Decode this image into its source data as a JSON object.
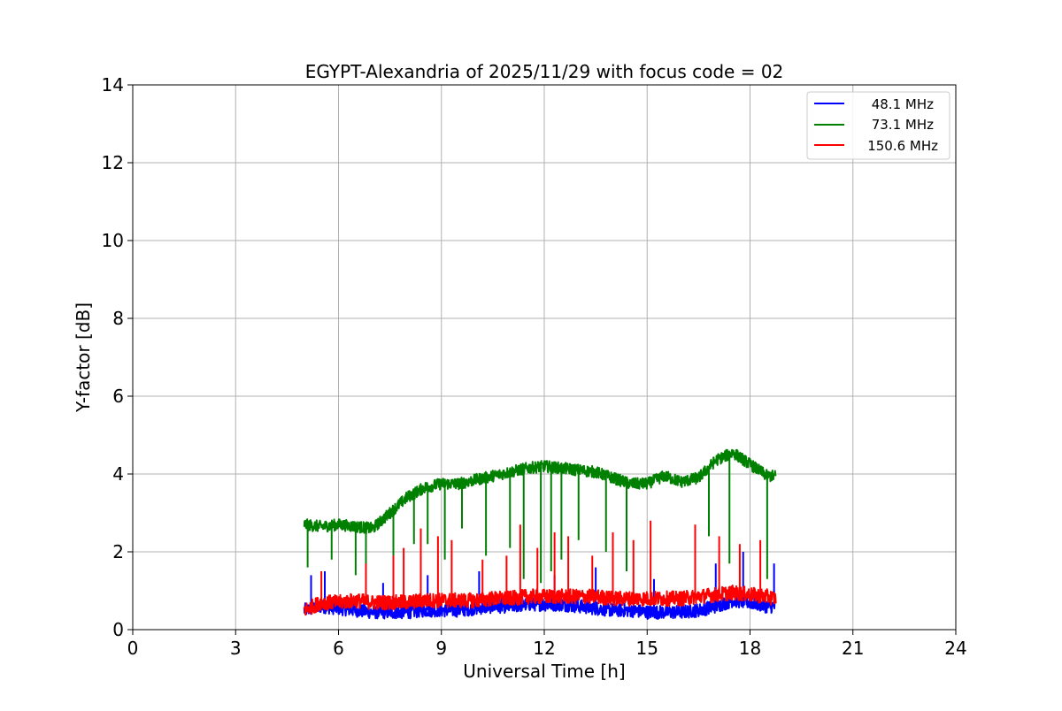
{
  "chart_data": {
    "type": "line",
    "title": "EGYPT-Alexandria of 2025/11/29 with focus code = 02",
    "xlabel": "Universal Time [h]",
    "ylabel": "Y-factor [dB]",
    "xlim": [
      0,
      24
    ],
    "ylim": [
      0,
      14
    ],
    "xticks": [
      "0",
      "3",
      "6",
      "9",
      "12",
      "15",
      "18",
      "21",
      "24"
    ],
    "yticks": [
      "0",
      "2",
      "4",
      "6",
      "8",
      "10",
      "12",
      "14"
    ],
    "grid": true,
    "legend_position": "top-right",
    "series": [
      {
        "name": "  48.1 MHz",
        "color": "#0000ff",
        "x": [
          5.0,
          5.5,
          6.0,
          6.5,
          7.0,
          7.5,
          8.0,
          8.5,
          9.0,
          9.5,
          10.0,
          10.5,
          11.0,
          11.5,
          12.0,
          12.5,
          13.0,
          13.5,
          14.0,
          14.5,
          15.0,
          15.5,
          16.0,
          16.5,
          17.0,
          17.5,
          18.0,
          18.5,
          18.75
        ],
        "values": [
          0.5,
          0.6,
          0.55,
          0.5,
          0.45,
          0.45,
          0.45,
          0.5,
          0.5,
          0.5,
          0.55,
          0.6,
          0.6,
          0.65,
          0.65,
          0.65,
          0.6,
          0.55,
          0.5,
          0.5,
          0.45,
          0.45,
          0.45,
          0.5,
          0.6,
          0.75,
          0.7,
          0.6,
          0.6
        ],
        "peaks": [
          [
            5.2,
            1.4
          ],
          [
            5.6,
            1.5
          ],
          [
            7.3,
            1.2
          ],
          [
            8.6,
            1.4
          ],
          [
            10.1,
            1.5
          ],
          [
            12.3,
            1.4
          ],
          [
            13.5,
            1.6
          ],
          [
            15.2,
            1.3
          ],
          [
            17.0,
            1.7
          ],
          [
            17.8,
            2.0
          ],
          [
            18.7,
            1.7
          ]
        ]
      },
      {
        "name": "  73.1 MHz",
        "color": "#008000",
        "x": [
          5.0,
          5.5,
          6.0,
          6.5,
          7.0,
          7.5,
          8.0,
          8.5,
          9.0,
          9.5,
          10.0,
          10.5,
          11.0,
          11.5,
          12.0,
          12.5,
          13.0,
          13.5,
          14.0,
          14.5,
          15.0,
          15.5,
          16.0,
          16.5,
          17.0,
          17.5,
          18.0,
          18.5,
          18.75
        ],
        "values": [
          2.7,
          2.65,
          2.7,
          2.65,
          2.6,
          3.0,
          3.4,
          3.65,
          3.75,
          3.75,
          3.85,
          3.95,
          4.05,
          4.15,
          4.2,
          4.15,
          4.1,
          4.05,
          3.9,
          3.75,
          3.75,
          3.95,
          3.8,
          3.9,
          4.35,
          4.55,
          4.25,
          3.95,
          3.95
        ],
        "dips": [
          [
            5.1,
            1.6
          ],
          [
            5.8,
            1.8
          ],
          [
            6.5,
            1.4
          ],
          [
            6.8,
            1.3
          ],
          [
            7.6,
            1.6
          ],
          [
            8.2,
            2.2
          ],
          [
            8.6,
            2.2
          ],
          [
            9.1,
            1.8
          ],
          [
            9.6,
            2.6
          ],
          [
            10.3,
            1.9
          ],
          [
            11.0,
            2.1
          ],
          [
            11.4,
            1.3
          ],
          [
            11.9,
            1.2
          ],
          [
            12.2,
            1.5
          ],
          [
            12.5,
            1.8
          ],
          [
            13.0,
            2.3
          ],
          [
            13.8,
            2.0
          ],
          [
            14.4,
            1.5
          ],
          [
            16.8,
            2.4
          ],
          [
            17.4,
            1.7
          ],
          [
            18.5,
            1.3
          ]
        ]
      },
      {
        "name": "150.6 MHz",
        "color": "#ff0000",
        "x": [
          5.0,
          5.5,
          6.0,
          6.5,
          7.0,
          7.5,
          8.0,
          8.5,
          9.0,
          9.5,
          10.0,
          10.5,
          11.0,
          11.5,
          12.0,
          12.5,
          13.0,
          13.5,
          14.0,
          14.5,
          15.0,
          15.5,
          16.0,
          16.5,
          17.0,
          17.5,
          18.0,
          18.5,
          18.75
        ],
        "values": [
          0.5,
          0.7,
          0.7,
          0.75,
          0.7,
          0.7,
          0.7,
          0.75,
          0.75,
          0.75,
          0.75,
          0.8,
          0.8,
          0.85,
          0.85,
          0.85,
          0.85,
          0.85,
          0.8,
          0.8,
          0.8,
          0.8,
          0.8,
          0.85,
          0.9,
          0.95,
          0.9,
          0.85,
          0.8
        ],
        "peaks": [
          [
            5.5,
            1.5
          ],
          [
            6.8,
            1.7
          ],
          [
            7.6,
            1.9
          ],
          [
            7.9,
            2.1
          ],
          [
            8.4,
            2.6
          ],
          [
            8.9,
            2.4
          ],
          [
            9.3,
            2.3
          ],
          [
            10.2,
            1.8
          ],
          [
            10.9,
            1.9
          ],
          [
            11.3,
            2.7
          ],
          [
            11.8,
            2.1
          ],
          [
            12.3,
            2.5
          ],
          [
            12.7,
            2.4
          ],
          [
            13.4,
            1.9
          ],
          [
            14.0,
            2.5
          ],
          [
            14.6,
            2.3
          ],
          [
            15.1,
            2.8
          ],
          [
            16.4,
            2.7
          ],
          [
            17.1,
            2.4
          ],
          [
            17.7,
            2.2
          ],
          [
            18.3,
            2.3
          ]
        ]
      }
    ]
  }
}
